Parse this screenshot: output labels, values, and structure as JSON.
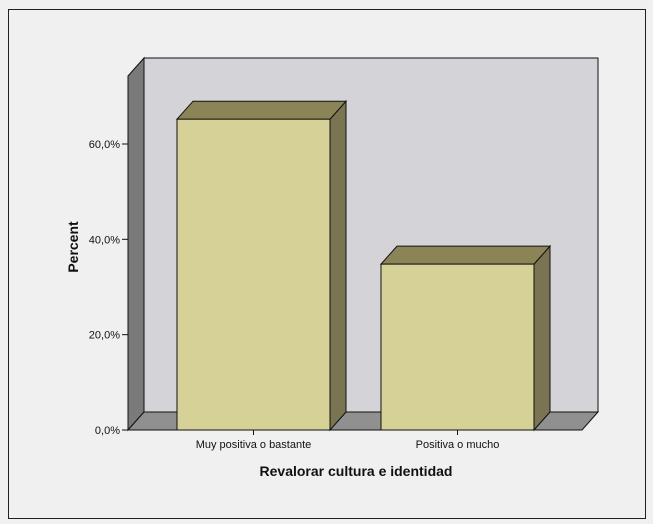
{
  "chart_data": {
    "type": "bar",
    "style": "3d",
    "categories": [
      "Muy positiva o bastante",
      "Positiva o mucho"
    ],
    "values": [
      65.2,
      34.8
    ],
    "xlabel": "Revalorar cultura e identidad",
    "ylabel": "Percent",
    "ylim": [
      0,
      80
    ],
    "yticks": [
      0,
      20,
      40,
      60
    ],
    "ytick_labels": [
      "0,0%",
      "20,0%",
      "40,0%",
      "60,0%"
    ],
    "grid": false,
    "legend": "none"
  },
  "colors": {
    "bar_front": "#d6d197",
    "bar_top": "#8a8456",
    "bar_side": "#7a7452",
    "back_wall": "#d4d4d8",
    "left_wall": "#7a7a7a",
    "floor": "#909090"
  }
}
